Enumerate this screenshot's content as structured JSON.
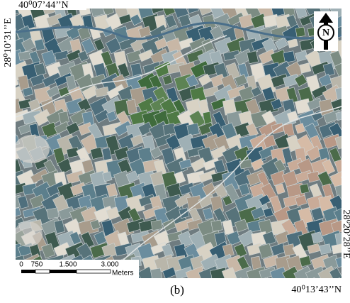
{
  "map": {
    "corner_labels": {
      "top_left": "40⁰07’44’’N",
      "left": "28⁰10’31’’E",
      "right": "28⁰20’28’’E",
      "bottom_right": "40⁰13’43’’N"
    },
    "north_arrow": "N",
    "scale_bar": {
      "labels": [
        "0",
        "750",
        "1.500",
        "3.000"
      ],
      "unit": "Meters"
    },
    "caption": "(b)"
  }
}
